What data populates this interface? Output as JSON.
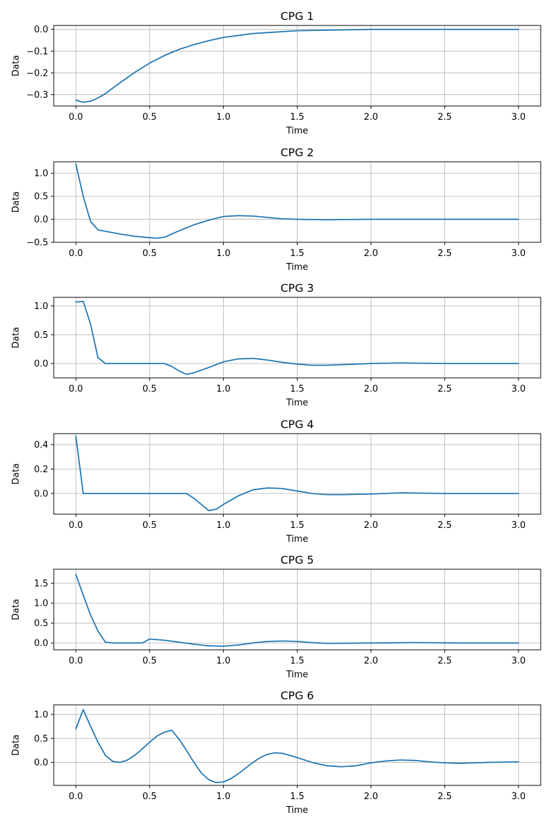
{
  "chart_data": [
    {
      "type": "line",
      "title": "CPG 1",
      "xlabel": "Time",
      "ylabel": "Data",
      "xlim": [
        -0.15,
        3.15
      ],
      "ylim": [
        -0.352,
        0.018
      ],
      "xticks": [
        0.0,
        0.5,
        1.0,
        1.5,
        2.0,
        2.5,
        3.0
      ],
      "xtick_labels": [
        "0.0",
        "0.5",
        "1.0",
        "1.5",
        "2.0",
        "2.5",
        "3.0"
      ],
      "yticks": [
        -0.3,
        -0.2,
        -0.1,
        0.0
      ],
      "ytick_labels": [
        "−0.3",
        "−0.2",
        "−0.1",
        "0.0"
      ],
      "grid": true,
      "x": [
        0.0,
        0.05,
        0.1,
        0.15,
        0.2,
        0.3,
        0.4,
        0.5,
        0.6,
        0.7,
        0.8,
        0.9,
        1.0,
        1.2,
        1.5,
        2.0,
        2.5,
        3.0
      ],
      "y": [
        -0.325,
        -0.335,
        -0.33,
        -0.315,
        -0.295,
        -0.245,
        -0.197,
        -0.155,
        -0.12,
        -0.092,
        -0.07,
        -0.052,
        -0.037,
        -0.019,
        -0.006,
        0.0,
        0.0,
        0.0
      ]
    },
    {
      "type": "line",
      "title": "CPG 2",
      "xlabel": "Time",
      "ylabel": "Data",
      "xlim": [
        -0.15,
        3.15
      ],
      "ylim": [
        -0.5,
        1.25
      ],
      "xticks": [
        0.0,
        0.5,
        1.0,
        1.5,
        2.0,
        2.5,
        3.0
      ],
      "xtick_labels": [
        "0.0",
        "0.5",
        "1.0",
        "1.5",
        "2.0",
        "2.5",
        "3.0"
      ],
      "yticks": [
        -0.5,
        0.0,
        0.5,
        1.0
      ],
      "ytick_labels": [
        "−0.5",
        "0.0",
        "0.5",
        "1.0"
      ],
      "grid": true,
      "x": [
        0.0,
        0.05,
        0.1,
        0.15,
        0.2,
        0.3,
        0.4,
        0.5,
        0.55,
        0.6,
        0.7,
        0.8,
        0.9,
        1.0,
        1.1,
        1.2,
        1.3,
        1.4,
        1.5,
        1.7,
        2.0,
        2.5,
        3.0
      ],
      "y": [
        1.2,
        0.5,
        -0.05,
        -0.23,
        -0.26,
        -0.32,
        -0.37,
        -0.4,
        -0.41,
        -0.39,
        -0.25,
        -0.12,
        -0.02,
        0.06,
        0.08,
        0.07,
        0.04,
        0.01,
        0.0,
        -0.01,
        0.0,
        0.0,
        0.0
      ]
    },
    {
      "type": "line",
      "title": "CPG 3",
      "xlabel": "Time",
      "ylabel": "Data",
      "xlim": [
        -0.15,
        3.15
      ],
      "ylim": [
        -0.25,
        1.15
      ],
      "xticks": [
        0.0,
        0.5,
        1.0,
        1.5,
        2.0,
        2.5,
        3.0
      ],
      "xtick_labels": [
        "0.0",
        "0.5",
        "1.0",
        "1.5",
        "2.0",
        "2.5",
        "3.0"
      ],
      "yticks": [
        0.0,
        0.5,
        1.0
      ],
      "ytick_labels": [
        "0.0",
        "0.5",
        "1.0"
      ],
      "grid": true,
      "x": [
        0.0,
        0.05,
        0.1,
        0.15,
        0.2,
        0.6,
        0.65,
        0.7,
        0.75,
        0.8,
        0.9,
        1.0,
        1.1,
        1.2,
        1.3,
        1.4,
        1.5,
        1.6,
        1.7,
        1.8,
        2.0,
        2.2,
        2.5,
        3.0
      ],
      "y": [
        1.07,
        1.08,
        0.68,
        0.1,
        0.0,
        0.0,
        -0.05,
        -0.13,
        -0.19,
        -0.16,
        -0.07,
        0.03,
        0.08,
        0.09,
        0.06,
        0.02,
        -0.01,
        -0.03,
        -0.03,
        -0.02,
        0.0,
        0.01,
        0.0,
        0.0
      ]
    },
    {
      "type": "line",
      "title": "CPG 4",
      "xlabel": "Time",
      "ylabel": "Data",
      "xlim": [
        -0.15,
        3.15
      ],
      "ylim": [
        -0.17,
        0.49
      ],
      "xticks": [
        0.0,
        0.5,
        1.0,
        1.5,
        2.0,
        2.5,
        3.0
      ],
      "xtick_labels": [
        "0.0",
        "0.5",
        "1.0",
        "1.5",
        "2.0",
        "2.5",
        "3.0"
      ],
      "yticks": [
        0.0,
        0.2,
        0.4
      ],
      "ytick_labels": [
        "0.0",
        "0.2",
        "0.4"
      ],
      "grid": true,
      "x": [
        0.0,
        0.05,
        0.75,
        0.8,
        0.85,
        0.9,
        0.95,
        1.0,
        1.1,
        1.2,
        1.3,
        1.4,
        1.5,
        1.6,
        1.7,
        1.8,
        2.0,
        2.2,
        2.5,
        3.0
      ],
      "y": [
        0.47,
        0.0,
        0.0,
        -0.04,
        -0.09,
        -0.14,
        -0.13,
        -0.09,
        -0.02,
        0.03,
        0.045,
        0.04,
        0.02,
        0.0,
        -0.01,
        -0.01,
        -0.005,
        0.005,
        0.0,
        0.0
      ]
    },
    {
      "type": "line",
      "title": "CPG 5",
      "xlabel": "Time",
      "ylabel": "Data",
      "xlim": [
        -0.15,
        3.15
      ],
      "ylim": [
        -0.17,
        1.85
      ],
      "xticks": [
        0.0,
        0.5,
        1.0,
        1.5,
        2.0,
        2.5,
        3.0
      ],
      "xtick_labels": [
        "0.0",
        "0.5",
        "1.0",
        "1.5",
        "2.0",
        "2.5",
        "3.0"
      ],
      "yticks": [
        0.0,
        0.5,
        1.0,
        1.5
      ],
      "ytick_labels": [
        "0.0",
        "0.5",
        "1.0",
        "1.5"
      ],
      "grid": true,
      "x": [
        0.0,
        0.05,
        0.1,
        0.15,
        0.2,
        0.25,
        0.45,
        0.5,
        0.6,
        0.7,
        0.8,
        0.9,
        1.0,
        1.1,
        1.2,
        1.3,
        1.4,
        1.5,
        1.6,
        1.7,
        2.0,
        2.3,
        2.6,
        3.0
      ],
      "y": [
        1.72,
        1.2,
        0.7,
        0.3,
        0.02,
        0.0,
        0.0,
        0.1,
        0.07,
        0.02,
        -0.03,
        -0.07,
        -0.08,
        -0.05,
        0.0,
        0.04,
        0.05,
        0.04,
        0.01,
        -0.01,
        0.0,
        0.01,
        0.0,
        0.0
      ]
    },
    {
      "type": "line",
      "title": "CPG 6",
      "xlabel": "Time",
      "ylabel": "Data",
      "xlim": [
        -0.15,
        3.15
      ],
      "ylim": [
        -0.48,
        1.2
      ],
      "xticks": [
        0.0,
        0.5,
        1.0,
        1.5,
        2.0,
        2.5,
        3.0
      ],
      "xtick_labels": [
        "0.0",
        "0.5",
        "1.0",
        "1.5",
        "2.0",
        "2.5",
        "3.0"
      ],
      "yticks": [
        0.0,
        0.5,
        1.0
      ],
      "ytick_labels": [
        "0.0",
        "0.5",
        "1.0"
      ],
      "grid": true,
      "x": [
        0.0,
        0.05,
        0.1,
        0.15,
        0.2,
        0.25,
        0.3,
        0.35,
        0.4,
        0.45,
        0.5,
        0.55,
        0.6,
        0.65,
        0.7,
        0.75,
        0.8,
        0.85,
        0.9,
        0.95,
        1.0,
        1.05,
        1.1,
        1.15,
        1.2,
        1.25,
        1.3,
        1.35,
        1.4,
        1.5,
        1.6,
        1.7,
        1.8,
        1.9,
        2.0,
        2.1,
        2.2,
        2.3,
        2.4,
        2.5,
        2.6,
        2.7,
        2.8,
        3.0
      ],
      "y": [
        0.7,
        1.1,
        0.75,
        0.42,
        0.15,
        0.02,
        0.0,
        0.05,
        0.15,
        0.28,
        0.42,
        0.55,
        0.63,
        0.67,
        0.48,
        0.25,
        0.0,
        -0.22,
        -0.36,
        -0.42,
        -0.41,
        -0.34,
        -0.24,
        -0.12,
        0.0,
        0.1,
        0.17,
        0.2,
        0.19,
        0.1,
        0.0,
        -0.07,
        -0.09,
        -0.07,
        -0.01,
        0.03,
        0.05,
        0.04,
        0.01,
        -0.01,
        -0.02,
        -0.01,
        0.0,
        0.01
      ]
    }
  ]
}
